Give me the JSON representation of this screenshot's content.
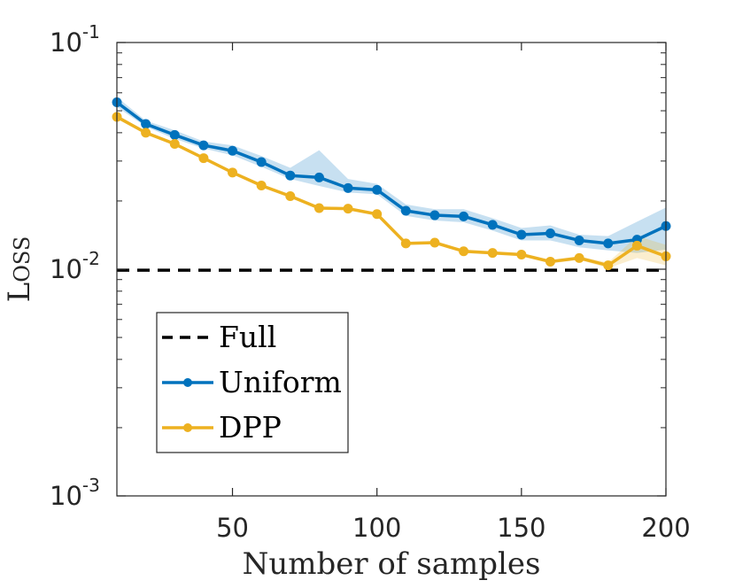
{
  "chart_data": {
    "type": "line",
    "xlabel": "Number of samples",
    "ylabel": "Loss",
    "yscale": "log",
    "xlim": [
      10,
      200
    ],
    "ylim": [
      0.001,
      0.1
    ],
    "x_ticks": [
      {
        "value": 50,
        "label": "50"
      },
      {
        "value": 100,
        "label": "100"
      },
      {
        "value": 150,
        "label": "150"
      },
      {
        "value": 200,
        "label": "200"
      }
    ],
    "y_ticks": [
      {
        "value": 0.001,
        "base": "10",
        "exp": "-3"
      },
      {
        "value": 0.01,
        "base": "10",
        "exp": "-2"
      },
      {
        "value": 0.1,
        "base": "10",
        "exp": "-1"
      }
    ],
    "legend_position": "bottom-left",
    "series": [
      {
        "name": "Full",
        "style": "dashed",
        "color": "#000000",
        "constant": 0.0099
      },
      {
        "name": "Uniform",
        "color": "#0072BD",
        "band_color": "#0072BD",
        "x": [
          10,
          20,
          30,
          40,
          50,
          60,
          70,
          80,
          90,
          100,
          110,
          120,
          130,
          140,
          150,
          160,
          170,
          180,
          190,
          200
        ],
        "values": [
          0.0545,
          0.0437,
          0.0391,
          0.0352,
          0.0333,
          0.0297,
          0.0259,
          0.0254,
          0.0228,
          0.0224,
          0.0181,
          0.0173,
          0.0171,
          0.0157,
          0.0142,
          0.0144,
          0.0134,
          0.013,
          0.0135,
          0.0155
        ],
        "band_low": [
          0.052,
          0.0425,
          0.0376,
          0.0341,
          0.0318,
          0.0283,
          0.025,
          0.0233,
          0.0218,
          0.0214,
          0.0172,
          0.0164,
          0.0161,
          0.0148,
          0.0134,
          0.0134,
          0.0125,
          0.0121,
          0.0118,
          0.0122
        ],
        "band_high": [
          0.0575,
          0.0452,
          0.041,
          0.0366,
          0.0352,
          0.0316,
          0.028,
          0.0335,
          0.025,
          0.0238,
          0.0193,
          0.0184,
          0.0184,
          0.0168,
          0.0152,
          0.0156,
          0.0142,
          0.014,
          0.0162,
          0.0187
        ]
      },
      {
        "name": "DPP",
        "color": "#EDB120",
        "band_color": "#EDB120",
        "x": [
          10,
          20,
          30,
          40,
          50,
          60,
          70,
          80,
          90,
          100,
          110,
          120,
          130,
          140,
          150,
          160,
          170,
          180,
          190,
          200
        ],
        "values": [
          0.047,
          0.04,
          0.0357,
          0.0309,
          0.0267,
          0.0234,
          0.021,
          0.0186,
          0.0185,
          0.0175,
          0.013,
          0.0131,
          0.012,
          0.0118,
          0.0116,
          0.0108,
          0.0112,
          0.0104,
          0.0127,
          0.0114
        ],
        "band_low": [
          0.046,
          0.0393,
          0.0351,
          0.0305,
          0.0263,
          0.023,
          0.0207,
          0.0183,
          0.0182,
          0.0172,
          0.0128,
          0.0129,
          0.0118,
          0.0116,
          0.0114,
          0.0106,
          0.011,
          0.0101,
          0.0112,
          0.0104
        ],
        "band_high": [
          0.048,
          0.0407,
          0.0363,
          0.0314,
          0.0271,
          0.0238,
          0.0214,
          0.0189,
          0.0188,
          0.0178,
          0.0132,
          0.0133,
          0.0122,
          0.012,
          0.0118,
          0.011,
          0.0114,
          0.0107,
          0.014,
          0.0128
        ]
      }
    ]
  }
}
